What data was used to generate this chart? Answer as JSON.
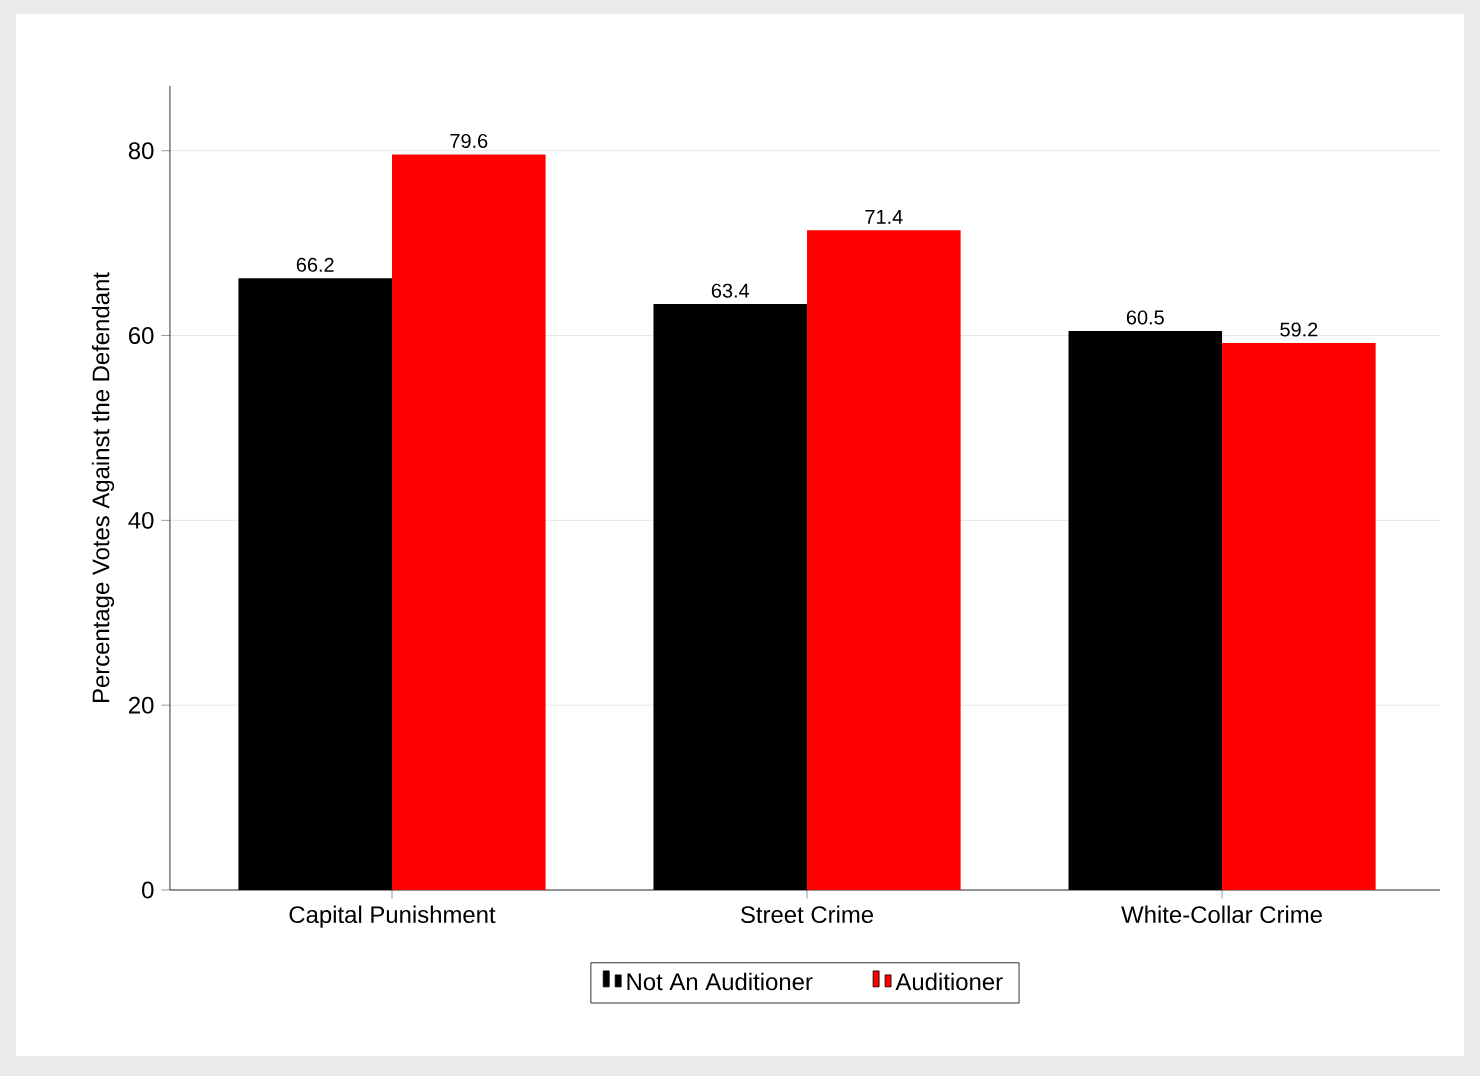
{
  "chart_data": {
    "type": "bar",
    "ylabel": "Percentage Votes Against the Defendant",
    "categories": [
      "Capital Punishment",
      "Street Crime",
      "White-Collar Crime"
    ],
    "series": [
      {
        "name": "Not An Auditioner",
        "color": "#000000",
        "values": [
          66.2,
          63.4,
          60.5
        ],
        "value_labels": [
          "66.2",
          "63.4",
          "60.5"
        ]
      },
      {
        "name": "Auditioner",
        "color": "#ff0000",
        "values": [
          79.6,
          71.4,
          59.2
        ],
        "value_labels": [
          "79.6",
          "71.4",
          "59.2"
        ]
      }
    ],
    "ylim": [
      0,
      87
    ],
    "yticks": [
      0,
      20,
      40,
      60,
      80
    ],
    "grid": "y",
    "legend": "bottom"
  }
}
